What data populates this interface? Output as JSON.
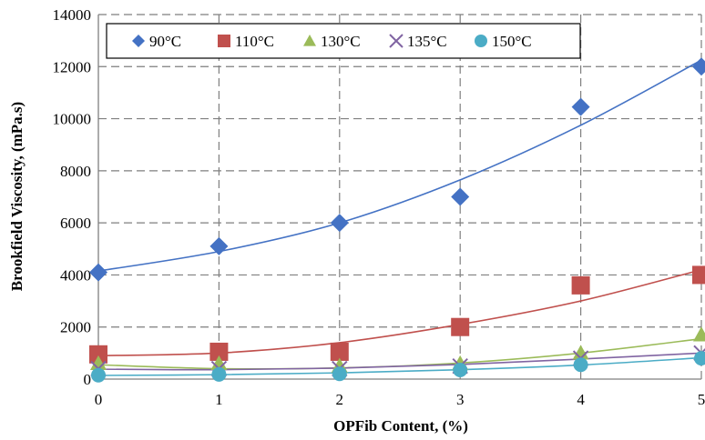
{
  "chart_data": {
    "type": "scatter",
    "title": "",
    "xlabel": "OPFib Content, (%)",
    "ylabel": "Brookfield Viscosity, (mPa.s)",
    "xlim": [
      0,
      5
    ],
    "ylim": [
      0,
      14000
    ],
    "x_ticks": [
      0,
      1,
      2,
      3,
      4,
      5
    ],
    "y_ticks": [
      0,
      2000,
      4000,
      6000,
      8000,
      10000,
      12000,
      14000
    ],
    "grid": true,
    "legend_position": "top",
    "x": [
      0,
      1,
      2,
      3,
      4,
      5
    ],
    "series": [
      {
        "name": "90°C",
        "marker": "diamond",
        "color": "#4472C4",
        "values": [
          4100,
          5100,
          6000,
          7000,
          10450,
          12000
        ],
        "trend": [
          4150,
          4900,
          6000,
          7650,
          9750,
          12250
        ]
      },
      {
        "name": "110°C",
        "marker": "square",
        "color": "#C0504D",
        "values": [
          950,
          1050,
          1050,
          2000,
          3600,
          4000
        ],
        "trend": [
          900,
          1000,
          1400,
          2100,
          3000,
          4200
        ]
      },
      {
        "name": "130°C",
        "marker": "triangle",
        "color": "#9BBB59",
        "values": [
          600,
          600,
          500,
          600,
          1000,
          1700
        ],
        "trend": [
          550,
          400,
          430,
          620,
          1000,
          1550
        ]
      },
      {
        "name": "135°C",
        "marker": "x",
        "color": "#8064A2",
        "values": [
          400,
          400,
          400,
          500,
          800,
          1000
        ],
        "trend": [
          380,
          360,
          420,
          560,
          770,
          1000
        ]
      },
      {
        "name": "150°C",
        "marker": "circle",
        "color": "#4BACC6",
        "values": [
          150,
          180,
          200,
          350,
          550,
          800
        ],
        "trend": [
          140,
          170,
          240,
          360,
          540,
          820
        ]
      }
    ]
  }
}
